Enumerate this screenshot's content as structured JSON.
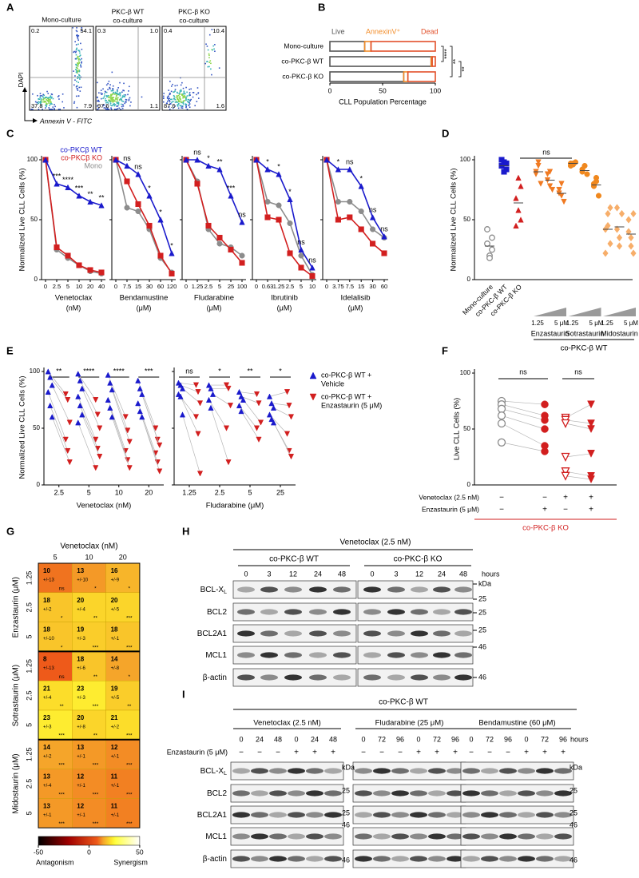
{
  "panel_a": {
    "letter": "A",
    "plots": [
      {
        "title": [
          "Mono-culture"
        ],
        "quadrants": [
          "0.2",
          "54.1",
          "37.8",
          "7.9"
        ]
      },
      {
        "title": [
          "PKC-β WT",
          "co-culture"
        ],
        "quadrants": [
          "0.3",
          "1.0",
          "97.6",
          "1.1"
        ]
      },
      {
        "title": [
          "PKC-β KO",
          "co-culture"
        ],
        "quadrants": [
          "0.4",
          "10.4",
          "87.6",
          "1.6"
        ]
      }
    ],
    "y_label": "DAPI",
    "x_label": "Annexin V - FITC"
  },
  "panel_b": {
    "letter": "B",
    "type": "bar",
    "orientation": "horizontal",
    "stacked": true,
    "categories": [
      "Mono-culture",
      "co-PKC-β WT",
      "co-PKC-β KO"
    ],
    "series": [
      {
        "name": "Live",
        "color": "#555555",
        "values": [
          33,
          96,
          70
        ]
      },
      {
        "name": "AnnexinV⁺",
        "color": "#f28c28",
        "values": [
          6,
          1,
          4
        ]
      },
      {
        "name": "Dead",
        "color": "#e2502b",
        "values": [
          61,
          3,
          26
        ]
      }
    ],
    "xlim": [
      0,
      100
    ],
    "xticks": [
      0,
      50,
      100
    ],
    "x_label": "CLL Population Percentage",
    "annotations": [
      "****",
      "**",
      "**"
    ]
  },
  "panel_c": {
    "letter": "C",
    "type": "line",
    "y_label": "Normalized Live CLL Cells (%)",
    "ylim": [
      0,
      100
    ],
    "yticks": [
      0,
      50,
      100
    ],
    "series": [
      {
        "name": "co-PKCβ WT",
        "color": "#1a1acc",
        "marker": "triangle"
      },
      {
        "name": "co-PKCβ KO",
        "color": "#d21f1f",
        "marker": "square"
      },
      {
        "name": "Mono",
        "color": "#8c8c8c",
        "marker": "circle"
      }
    ],
    "charts": [
      {
        "drug": "Venetoclax",
        "unit": "(nM)",
        "categories": [
          "0",
          "2.5",
          "5",
          "10",
          "20",
          "40"
        ],
        "values": [
          [
            100,
            80,
            77,
            70,
            65,
            62
          ],
          [
            100,
            27,
            20,
            12,
            8,
            6
          ],
          [
            100,
            25,
            18,
            12,
            7,
            5
          ]
        ],
        "annotations": [
          "***",
          "****",
          "***",
          "**",
          "**"
        ]
      },
      {
        "drug": "Bendamustine",
        "unit": "(μM)",
        "categories": [
          "0",
          "7.5",
          "15",
          "30",
          "60",
          "120"
        ],
        "values": [
          [
            100,
            95,
            88,
            70,
            50,
            22
          ],
          [
            100,
            82,
            63,
            45,
            20,
            5
          ],
          [
            100,
            60,
            57,
            42,
            18,
            6
          ]
        ],
        "annotations": [
          "ns",
          "ns",
          "*",
          "*",
          "*"
        ]
      },
      {
        "drug": "Fludarabine",
        "unit": "(μM)",
        "categories": [
          "0",
          "1.25",
          "2.5",
          "5",
          "25",
          "100"
        ],
        "values": [
          [
            100,
            100,
            95,
            92,
            70,
            48
          ],
          [
            100,
            80,
            45,
            35,
            25,
            14
          ],
          [
            100,
            82,
            42,
            30,
            27,
            20
          ]
        ],
        "annotations": [
          "ns",
          "*",
          "**",
          "***",
          "ns"
        ]
      },
      {
        "drug": "Ibrutinib",
        "unit": "(μM)",
        "categories": [
          "0",
          "0.63",
          "1.25",
          "2.5",
          "5",
          "10"
        ],
        "values": [
          [
            100,
            92,
            88,
            67,
            25,
            10
          ],
          [
            100,
            52,
            50,
            22,
            10,
            3
          ],
          [
            100,
            65,
            62,
            47,
            20,
            4
          ]
        ],
        "annotations": [
          "*",
          "*",
          "*",
          "ns",
          "ns"
        ]
      },
      {
        "drug": "Idelalisib",
        "unit": "(μM)",
        "categories": [
          "0",
          "3.75",
          "7.5",
          "15",
          "30",
          "60"
        ],
        "values": [
          [
            100,
            92,
            92,
            78,
            52,
            36
          ],
          [
            100,
            50,
            52,
            42,
            30,
            22
          ],
          [
            100,
            65,
            65,
            57,
            42,
            35
          ]
        ],
        "annotations": [
          "*",
          "ns",
          "*",
          "ns",
          "ns"
        ]
      }
    ]
  },
  "panel_d": {
    "letter": "D",
    "type": "scatter",
    "y_label": "Normalized Live CLL Cells (%)",
    "ylim": [
      0,
      100
    ],
    "yticks": [
      0,
      50,
      100
    ],
    "annotation": "ns",
    "groups": [
      {
        "label": "Mono-culture",
        "color": "#8c8c8c",
        "marker": "circle-open",
        "values": [
          30,
          20,
          35,
          42,
          18,
          25
        ],
        "mean": 28
      },
      {
        "label": "co-PKC-β WT",
        "color": "#1a1acc",
        "marker": "square",
        "values": [
          95,
          98,
          92,
          100,
          90,
          97
        ],
        "mean": 95
      },
      {
        "label": "co-PKC-β KO",
        "color": "#d21f1f",
        "marker": "triangle",
        "values": [
          68,
          85,
          50,
          45,
          58,
          78
        ],
        "mean": 64
      },
      {
        "color": "#f07a22",
        "marker": "triangle-down",
        "values": [
          90,
          95,
          80,
          88,
          98
        ],
        "mean": 90
      },
      {
        "color": "#f07a22",
        "marker": "triangle-down",
        "values": [
          83,
          90,
          75,
          88,
          78
        ],
        "mean": 83
      },
      {
        "color": "#f07a22",
        "marker": "triangle-down",
        "values": [
          72,
          80,
          65,
          75,
          70
        ],
        "mean": 72
      },
      {
        "color": "#f0881e",
        "marker": "circle",
        "values": [
          97,
          96,
          98,
          95,
          97
        ],
        "mean": 97
      },
      {
        "color": "#f0881e",
        "marker": "circle",
        "values": [
          92,
          95,
          88,
          90
        ],
        "mean": 91
      },
      {
        "color": "#f0881e",
        "marker": "circle",
        "values": [
          80,
          82,
          70,
          78,
          85
        ],
        "mean": 79
      },
      {
        "color": "#f7ae6a",
        "marker": "diamond",
        "values": [
          42,
          55,
          30,
          22,
          45,
          60
        ],
        "mean": 42
      },
      {
        "color": "#f7ae6a",
        "marker": "diamond",
        "values": [
          42,
          35,
          55,
          60,
          28
        ],
        "mean": 44
      },
      {
        "color": "#f7ae6a",
        "marker": "diamond",
        "values": [
          40,
          28,
          55,
          50,
          35,
          22
        ],
        "mean": 38
      }
    ],
    "drugs": [
      {
        "name": "Enzastaurin",
        "low": "1.25",
        "high": "5 μM"
      },
      {
        "name": "Sotrastaurin",
        "low": "1.25",
        "high": "5 μM"
      },
      {
        "name": "Midostaurin",
        "low": "1.25",
        "high": "5 μM"
      }
    ],
    "footer": "co-PKC-β WT"
  },
  "panel_e": {
    "letter": "E",
    "type": "scatter",
    "y_label": "Normalized Live CLL Cells (%)",
    "ylim": [
      0,
      100
    ],
    "yticks": [
      0,
      50,
      100
    ],
    "legend": [
      {
        "name": [
          "co-PKC-β WT +",
          "Vehicle"
        ],
        "color": "#1a1acc",
        "marker": "triangle"
      },
      {
        "name": [
          "co-PKC-β WT +",
          "Enzastaurin (5 μM)"
        ],
        "color": "#d21f1f",
        "marker": "triangle-down"
      }
    ],
    "charts": [
      {
        "drug": "Venetoclax (nM)",
        "categories": [
          "2.5",
          "5",
          "10",
          "20"
        ],
        "annotations": [
          "**",
          "****",
          "****",
          "***"
        ],
        "vehicle": [
          [
            100,
            95,
            88,
            82,
            70,
            60
          ],
          [
            98,
            92,
            85,
            78,
            70,
            62,
            55
          ],
          [
            97,
            90,
            84,
            75,
            68,
            60
          ],
          [
            92,
            85,
            80,
            72,
            65,
            60
          ]
        ],
        "enzastaurin": [
          [
            80,
            75,
            55,
            40,
            30,
            20
          ],
          [
            75,
            62,
            50,
            40,
            32,
            25,
            15
          ],
          [
            60,
            48,
            38,
            30,
            22,
            15
          ],
          [
            50,
            40,
            35,
            28,
            20,
            12
          ]
        ]
      },
      {
        "drug": "Fludarabine (μM)",
        "categories": [
          "1.25",
          "2.5",
          "5",
          "25"
        ],
        "annotations": [
          "ns",
          "*",
          "**",
          "*"
        ],
        "vehicle": [
          [
            90,
            88,
            85,
            80,
            78,
            62
          ],
          [
            88,
            85,
            80,
            75,
            68
          ],
          [
            82,
            78,
            75,
            70,
            65
          ],
          [
            78,
            72,
            68,
            62,
            58,
            55
          ]
        ],
        "enzastaurin": [
          [
            88,
            82,
            72,
            60,
            45,
            10
          ],
          [
            88,
            85,
            70,
            50,
            20
          ],
          [
            80,
            72,
            55,
            50,
            40
          ],
          [
            82,
            70,
            60,
            45,
            30,
            25
          ]
        ]
      }
    ]
  },
  "panel_f": {
    "letter": "F",
    "type": "scatter",
    "y_label": "Live CLL Cells (%)",
    "ylim": [
      0,
      100
    ],
    "yticks": [
      0,
      50,
      100
    ],
    "annotations": [
      "ns",
      "ns"
    ],
    "groups": [
      {
        "color": "#8c8c8c",
        "marker": "circle-open",
        "values": [
          75,
          72,
          68,
          62,
          55,
          38
        ]
      },
      {
        "color": "#d21f1f",
        "marker": "circle",
        "values": [
          72,
          62,
          58,
          50,
          35,
          30
        ]
      },
      {
        "color": "#d21f1f",
        "marker": "triangle-down-open",
        "values": [
          60,
          58,
          55,
          25,
          12,
          8
        ]
      },
      {
        "color": "#d21f1f",
        "marker": "triangle-down",
        "values": [
          72,
          55,
          50,
          28,
          8,
          5
        ]
      }
    ],
    "rows": [
      {
        "label": "Venetoclax (2.5 nM)",
        "signs": [
          "−",
          "−",
          "+",
          "+"
        ]
      },
      {
        "label": "Enzastaurin (5 μM)",
        "signs": [
          "−",
          "+",
          "−",
          "+"
        ]
      }
    ],
    "footer": "co-PKC-β KO"
  },
  "panel_g": {
    "letter": "G",
    "type": "heatmap",
    "title": "Venetoclax (nM)",
    "columns": [
      "5",
      "10",
      "20"
    ],
    "drugs": [
      {
        "name": "Enzastaurin (μM)",
        "rows": [
          {
            "label": "1.25",
            "cells": [
              {
                "value": 10,
                "sd": "+/-13",
                "sig": "ns"
              },
              {
                "value": 13,
                "sd": "+/-10",
                "sig": "*"
              },
              {
                "value": 16,
                "sd": "+/-9",
                "sig": "*"
              }
            ]
          },
          {
            "label": "2.5",
            "cells": [
              {
                "value": 18,
                "sd": "+/-2",
                "sig": "*"
              },
              {
                "value": 20,
                "sd": "+/-4",
                "sig": "**"
              },
              {
                "value": 20,
                "sd": "+/-5",
                "sig": "***"
              }
            ]
          },
          {
            "label": "5",
            "cells": [
              {
                "value": 18,
                "sd": "+/-10",
                "sig": "*"
              },
              {
                "value": 19,
                "sd": "+/-3",
                "sig": "***"
              },
              {
                "value": 18,
                "sd": "+/-1",
                "sig": "***"
              }
            ]
          }
        ]
      },
      {
        "name": "Sotrastaurin (μM)",
        "rows": [
          {
            "label": "1.25",
            "cells": [
              {
                "value": 8,
                "sd": "+/-13",
                "sig": "ns"
              },
              {
                "value": 18,
                "sd": "+/-6",
                "sig": "**"
              },
              {
                "value": 14,
                "sd": "+/-8",
                "sig": "*"
              }
            ]
          },
          {
            "label": "2.5",
            "cells": [
              {
                "value": 21,
                "sd": "+/-4",
                "sig": "**"
              },
              {
                "value": 23,
                "sd": "+/-3",
                "sig": "***"
              },
              {
                "value": 19,
                "sd": "+/-5",
                "sig": "**"
              }
            ]
          },
          {
            "label": "5",
            "cells": [
              {
                "value": 23,
                "sd": "+/-3",
                "sig": "***"
              },
              {
                "value": 20,
                "sd": "+/-8",
                "sig": "**"
              },
              {
                "value": 21,
                "sd": "+/-2",
                "sig": "***"
              }
            ]
          }
        ]
      },
      {
        "name": "Midostaurin (μM)",
        "rows": [
          {
            "label": "1.25",
            "cells": [
              {
                "value": 14,
                "sd": "+/-2",
                "sig": "***"
              },
              {
                "value": 13,
                "sd": "+/-1",
                "sig": "***"
              },
              {
                "value": 12,
                "sd": "+/-1",
                "sig": "***"
              }
            ]
          },
          {
            "label": "2.5",
            "cells": [
              {
                "value": 13,
                "sd": "+/-4",
                "sig": "***"
              },
              {
                "value": 12,
                "sd": "+/-1",
                "sig": "***"
              },
              {
                "value": 11,
                "sd": "+/-1",
                "sig": "***"
              }
            ]
          },
          {
            "label": "5",
            "cells": [
              {
                "value": 13,
                "sd": "+/-1",
                "sig": "***"
              },
              {
                "value": 12,
                "sd": "+/-1",
                "sig": "***"
              },
              {
                "value": 11,
                "sd": "+/-1",
                "sig": "***"
              }
            ]
          }
        ]
      }
    ],
    "colorbar": {
      "min": -50,
      "mid": 0,
      "max": 50,
      "left": "Antagonism",
      "right": "Synergism"
    }
  },
  "panel_h": {
    "letter": "H",
    "title": "Venetoclax (2.5 nM)",
    "groups": [
      "co-PKC-β WT",
      "co-PKC-β KO"
    ],
    "times": [
      "0",
      "3",
      "12",
      "24",
      "48"
    ],
    "unit": "hours",
    "rows": [
      {
        "text": "BCL-X",
        "sub": "L"
      },
      {
        "text": "BCL2"
      },
      {
        "text": "BCL2A1"
      },
      {
        "text": "MCL1"
      },
      {
        "text": "β-actin"
      }
    ],
    "markers": [
      "kDa",
      "25",
      "25",
      "25",
      "46",
      "46"
    ]
  },
  "panel_i": {
    "letter": "I",
    "title": "co-PKC-β WT",
    "groups": [
      {
        "label": "Venetoclax (2.5 nM)",
        "times": [
          "0",
          "24",
          "48",
          "0",
          "24",
          "48"
        ]
      },
      {
        "label": "Fludarabine (25 μM)",
        "times": [
          "0",
          "72",
          "96",
          "0",
          "72",
          "96"
        ]
      },
      {
        "label": "Bendamustine (60 μM)",
        "times": [
          "0",
          "72",
          "96",
          "0",
          "72",
          "96"
        ]
      }
    ],
    "unit": "hours",
    "treatment": "Enzastaurin (5 μM)",
    "signs": [
      "−",
      "−",
      "−",
      "+",
      "+",
      "+"
    ],
    "rows": [
      {
        "text": "BCL-X",
        "sub": "L"
      },
      {
        "text": "BCL2"
      },
      {
        "text": "BCL2A1"
      },
      {
        "text": "MCL1"
      },
      {
        "text": "β-actin"
      }
    ],
    "markers_left": [
      "kDa",
      "25",
      "25",
      "46",
      "46"
    ],
    "markers_right": [
      "kDa",
      "25",
      "25",
      "46",
      "46"
    ]
  }
}
